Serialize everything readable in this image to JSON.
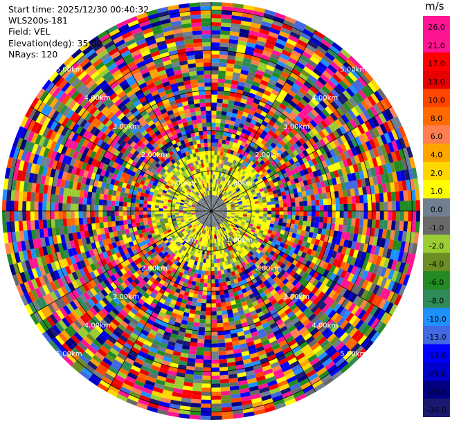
{
  "info": {
    "start_time": "Start time: 2025/12/30 00:40:32",
    "station": "WLS200s-181",
    "field": "Field: VEL",
    "elevation": "Elevation(deg): 35.00",
    "nrays": "NRays: 120"
  },
  "colorbar": {
    "unit": "m/s",
    "labels": [
      "26.0",
      "21.0",
      "17.0",
      "13.0",
      "10.0",
      "8.0",
      "6.0",
      "4.0",
      "2.0",
      "1.0",
      "0.0",
      "-1.0",
      "-2.0",
      "-4.0",
      "-6.0",
      "-8.0",
      "-10.0",
      "-13.0",
      "-17.0",
      "-21.0",
      "-26.0",
      "-30.0"
    ],
    "colors": [
      "#ff1493",
      "#ff1493",
      "#ff0000",
      "#e60000",
      "#ff4500",
      "#ff6a00",
      "#ff7f50",
      "#ffa500",
      "#ffd700",
      "#ffff00",
      "#708090",
      "#696969",
      "#9acd32",
      "#6b8e23",
      "#228b22",
      "#2e8b57",
      "#1e90ff",
      "#4169e1",
      "#0000ff",
      "#0000cd",
      "#000080",
      "#191970"
    ]
  },
  "chart_data": {
    "type": "heatmap",
    "subtype": "radar PPI (polar)",
    "field": "VEL",
    "units": "m/s",
    "elevation_deg": 35.0,
    "nrays": 120,
    "range_rings_km": [
      1.0,
      2.0,
      3.0,
      4.0,
      5.0
    ],
    "range_ring_labels": [
      "1.00km",
      "2.00km",
      "3.00km",
      "4.00km",
      "5.00km"
    ],
    "max_range_km": 5.2,
    "color_scale_min": -30.0,
    "color_scale_max": 26.0,
    "observed_pattern": "inner ~1.5 km dominated by near-zero (gray/olive) and small positive (yellow) velocities; beyond ~1.5 km values are noisy across the full scale"
  }
}
